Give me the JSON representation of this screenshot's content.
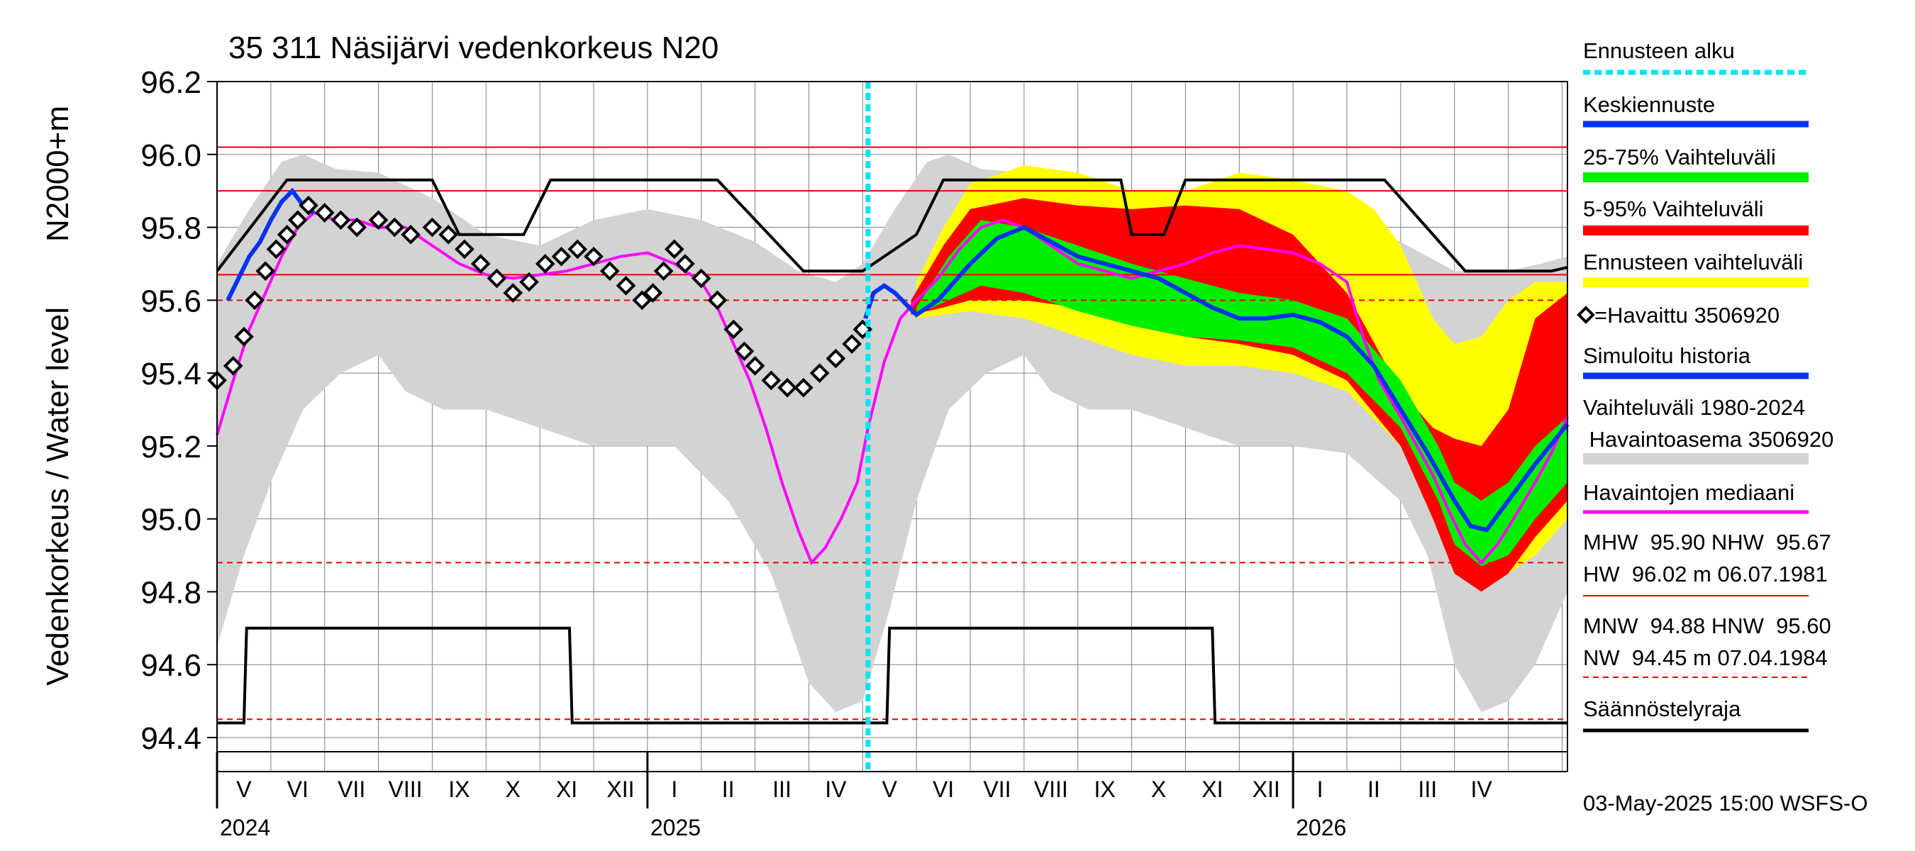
{
  "chart_data": {
    "type": "line",
    "title": "35 311 Näsijärvi vedenkorkeus N20",
    "ylabel_outer": "Vedenkorkeus / Water level",
    "ylabel_inner": "N2000+m",
    "ylim": [
      94.4,
      96.2
    ],
    "yticks": [
      "96.2",
      "96.0",
      "95.8",
      "95.6",
      "95.4",
      "95.2",
      "95.0",
      "94.8",
      "94.6",
      "94.4"
    ],
    "grid": true,
    "forecast_start_month": 12.1,
    "x_month_range": [
      0,
      25.1
    ],
    "months": [
      "V",
      "VI",
      "VII",
      "VIII",
      "IX",
      "X",
      "XI",
      "XII",
      "I",
      "II",
      "III",
      "IV",
      "V",
      "VI",
      "VII",
      "VIII",
      "IX",
      "X",
      "XI",
      "XII",
      "I",
      "II",
      "III",
      "IV"
    ],
    "years": [
      {
        "label": "2024",
        "month": 0
      },
      {
        "label": "2025",
        "month": 8
      },
      {
        "label": "2026",
        "month": 20
      }
    ],
    "reference_lines": [
      {
        "name": "HW",
        "value": 96.02,
        "style": "solid"
      },
      {
        "name": "MHW",
        "value": 95.9,
        "style": "solid"
      },
      {
        "name": "NHW",
        "value": 95.67,
        "style": "solid"
      },
      {
        "name": "HNW",
        "value": 95.6,
        "style": "dashed"
      },
      {
        "name": "MNW",
        "value": 94.88,
        "style": "dashed"
      },
      {
        "name": "NW",
        "value": 94.45,
        "style": "dashed"
      }
    ],
    "regulation_upper": [
      [
        0,
        95.68
      ],
      [
        1.3,
        95.93
      ],
      [
        4,
        95.93
      ],
      [
        4.5,
        95.78
      ],
      [
        5.7,
        95.78
      ],
      [
        6.2,
        95.93
      ],
      [
        9.3,
        95.93
      ],
      [
        10.9,
        95.68
      ],
      [
        12,
        95.68
      ],
      [
        13,
        95.78
      ],
      [
        13.5,
        95.93
      ],
      [
        16.8,
        95.93
      ],
      [
        17,
        95.78
      ],
      [
        17.6,
        95.78
      ],
      [
        18,
        95.93
      ],
      [
        21.7,
        95.93
      ],
      [
        23.2,
        95.68
      ],
      [
        24.8,
        95.68
      ],
      [
        25.1,
        95.69
      ]
    ],
    "regulation_lower": [
      [
        0,
        94.44
      ],
      [
        0.5,
        94.44
      ],
      [
        0.55,
        94.7
      ],
      [
        6.55,
        94.7
      ],
      [
        6.6,
        94.44
      ],
      [
        12.45,
        94.44
      ],
      [
        12.5,
        94.7
      ],
      [
        18.5,
        94.7
      ],
      [
        18.55,
        94.44
      ],
      [
        25.1,
        94.44
      ]
    ],
    "hist_range_upper": [
      [
        0,
        95.7
      ],
      [
        0.6,
        95.85
      ],
      [
        1.2,
        95.98
      ],
      [
        1.6,
        96.0
      ],
      [
        2.2,
        95.96
      ],
      [
        3,
        95.95
      ],
      [
        4,
        95.88
      ],
      [
        5,
        95.78
      ],
      [
        6,
        95.75
      ],
      [
        7,
        95.82
      ],
      [
        8,
        95.85
      ],
      [
        9,
        95.82
      ],
      [
        10,
        95.76
      ],
      [
        10.8,
        95.68
      ],
      [
        11.5,
        95.65
      ],
      [
        12,
        95.7
      ],
      [
        12.6,
        95.85
      ],
      [
        13.2,
        95.98
      ],
      [
        13.6,
        96.0
      ],
      [
        14.2,
        95.96
      ],
      [
        15,
        95.95
      ],
      [
        16,
        95.88
      ],
      [
        17,
        95.78
      ],
      [
        18,
        95.75
      ],
      [
        19,
        95.82
      ],
      [
        20,
        95.85
      ],
      [
        21,
        95.82
      ],
      [
        22,
        95.76
      ],
      [
        23,
        95.68
      ],
      [
        24,
        95.68
      ],
      [
        24.6,
        95.7
      ],
      [
        25.1,
        95.72
      ]
    ],
    "hist_range_lower": [
      [
        0,
        94.65
      ],
      [
        0.5,
        94.9
      ],
      [
        1,
        95.1
      ],
      [
        1.6,
        95.3
      ],
      [
        2.3,
        95.4
      ],
      [
        3,
        95.45
      ],
      [
        3.5,
        95.35
      ],
      [
        4.2,
        95.3
      ],
      [
        5,
        95.3
      ],
      [
        6,
        95.25
      ],
      [
        7,
        95.2
      ],
      [
        7.8,
        95.2
      ],
      [
        8.5,
        95.2
      ],
      [
        9.5,
        95.05
      ],
      [
        10.3,
        94.85
      ],
      [
        11,
        94.55
      ],
      [
        11.5,
        94.47
      ],
      [
        12,
        94.5
      ],
      [
        12.5,
        94.75
      ],
      [
        13,
        95.05
      ],
      [
        13.6,
        95.3
      ],
      [
        14.3,
        95.4
      ],
      [
        15,
        95.45
      ],
      [
        15.5,
        95.35
      ],
      [
        16.2,
        95.3
      ],
      [
        17,
        95.3
      ],
      [
        18,
        95.25
      ],
      [
        19,
        95.2
      ],
      [
        20,
        95.2
      ],
      [
        21,
        95.18
      ],
      [
        22,
        95.05
      ],
      [
        22.5,
        94.9
      ],
      [
        23,
        94.6
      ],
      [
        23.5,
        94.47
      ],
      [
        24,
        94.5
      ],
      [
        24.5,
        94.6
      ],
      [
        25.1,
        94.8
      ]
    ],
    "band_5_95_upper": [
      [
        12.9,
        95.6
      ],
      [
        13.5,
        95.75
      ],
      [
        14,
        95.85
      ],
      [
        15,
        95.88
      ],
      [
        16,
        95.86
      ],
      [
        17,
        95.85
      ],
      [
        18,
        95.86
      ],
      [
        19,
        95.85
      ],
      [
        20,
        95.78
      ],
      [
        21,
        95.62
      ],
      [
        22,
        95.35
      ],
      [
        22.6,
        95.25
      ],
      [
        23,
        95.22
      ],
      [
        23.5,
        95.2
      ],
      [
        24,
        95.3
      ],
      [
        24.5,
        95.55
      ],
      [
        25.1,
        95.62
      ]
    ],
    "band_5_95_lower": [
      [
        12.9,
        95.56
      ],
      [
        13.5,
        95.58
      ],
      [
        14,
        95.6
      ],
      [
        15,
        95.6
      ],
      [
        16,
        95.58
      ],
      [
        17,
        95.53
      ],
      [
        18,
        95.5
      ],
      [
        19,
        95.48
      ],
      [
        20,
        95.45
      ],
      [
        21,
        95.38
      ],
      [
        22,
        95.2
      ],
      [
        22.6,
        95.0
      ],
      [
        23,
        94.85
      ],
      [
        23.5,
        94.8
      ],
      [
        24,
        94.85
      ],
      [
        24.5,
        94.95
      ],
      [
        25.1,
        95.05
      ]
    ],
    "band_ensemble_upper": [
      [
        13,
        95.65
      ],
      [
        13.5,
        95.8
      ],
      [
        14,
        95.92
      ],
      [
        15,
        95.97
      ],
      [
        16,
        95.95
      ],
      [
        17,
        95.9
      ],
      [
        18,
        95.9
      ],
      [
        19,
        95.95
      ],
      [
        20,
        95.93
      ],
      [
        21,
        95.9
      ],
      [
        21.5,
        95.85
      ],
      [
        22,
        95.75
      ],
      [
        22.6,
        95.55
      ],
      [
        23,
        95.48
      ],
      [
        23.5,
        95.5
      ],
      [
        24,
        95.6
      ],
      [
        24.5,
        95.65
      ],
      [
        25.1,
        95.65
      ]
    ],
    "band_ensemble_lower": [
      [
        13,
        95.55
      ],
      [
        13.5,
        95.56
      ],
      [
        14,
        95.57
      ],
      [
        15,
        95.55
      ],
      [
        16,
        95.5
      ],
      [
        17,
        95.45
      ],
      [
        18,
        95.42
      ],
      [
        19,
        95.42
      ],
      [
        20,
        95.4
      ],
      [
        21,
        95.35
      ],
      [
        22,
        95.2
      ],
      [
        22.6,
        95.0
      ],
      [
        23,
        94.88
      ],
      [
        23.5,
        94.82
      ],
      [
        24,
        94.85
      ],
      [
        24.5,
        94.9
      ],
      [
        25.1,
        95.0
      ]
    ],
    "band_25_75_upper": [
      [
        13,
        95.58
      ],
      [
        13.6,
        95.72
      ],
      [
        14.2,
        95.82
      ],
      [
        15,
        95.8
      ],
      [
        16,
        95.75
      ],
      [
        17,
        95.7
      ],
      [
        18,
        95.66
      ],
      [
        19,
        95.62
      ],
      [
        20,
        95.6
      ],
      [
        21,
        95.55
      ],
      [
        22,
        95.38
      ],
      [
        22.7,
        95.2
      ],
      [
        23,
        95.1
      ],
      [
        23.5,
        95.05
      ],
      [
        24,
        95.1
      ],
      [
        24.5,
        95.2
      ],
      [
        25.1,
        95.28
      ]
    ],
    "band_25_75_lower": [
      [
        13,
        95.56
      ],
      [
        13.6,
        95.6
      ],
      [
        14.2,
        95.64
      ],
      [
        15,
        95.62
      ],
      [
        16,
        95.57
      ],
      [
        17,
        95.53
      ],
      [
        18,
        95.5
      ],
      [
        19,
        95.49
      ],
      [
        20,
        95.47
      ],
      [
        21,
        95.4
      ],
      [
        22,
        95.25
      ],
      [
        22.7,
        95.05
      ],
      [
        23,
        94.93
      ],
      [
        23.5,
        94.87
      ],
      [
        24,
        94.9
      ],
      [
        24.5,
        95.0
      ],
      [
        25.1,
        95.1
      ]
    ],
    "mean_forecast": [
      [
        12.05,
        95.55
      ],
      [
        12.2,
        95.62
      ],
      [
        12.4,
        95.64
      ],
      [
        12.6,
        95.62
      ],
      [
        13,
        95.56
      ],
      [
        13.4,
        95.6
      ],
      [
        14,
        95.7
      ],
      [
        14.5,
        95.77
      ],
      [
        15,
        95.8
      ],
      [
        15.5,
        95.76
      ],
      [
        16,
        95.72
      ],
      [
        17,
        95.68
      ],
      [
        17.5,
        95.66
      ],
      [
        18,
        95.62
      ],
      [
        18.5,
        95.58
      ],
      [
        19,
        95.55
      ],
      [
        19.5,
        95.55
      ],
      [
        20,
        95.56
      ],
      [
        20.5,
        95.54
      ],
      [
        21,
        95.5
      ],
      [
        21.5,
        95.42
      ],
      [
        22,
        95.3
      ],
      [
        22.5,
        95.18
      ],
      [
        23,
        95.05
      ],
      [
        23.3,
        94.98
      ],
      [
        23.6,
        94.97
      ],
      [
        24,
        95.05
      ],
      [
        24.5,
        95.15
      ],
      [
        25.1,
        95.26
      ]
    ],
    "simulated_history": [
      [
        0.2,
        95.6
      ],
      [
        0.4,
        95.66
      ],
      [
        0.6,
        95.72
      ],
      [
        0.8,
        95.76
      ],
      [
        1.0,
        95.82
      ],
      [
        1.2,
        95.87
      ],
      [
        1.4,
        95.9
      ],
      [
        1.6,
        95.86
      ],
      [
        1.8,
        95.84
      ]
    ],
    "observed": [
      [
        0,
        95.38
      ],
      [
        0.3,
        95.42
      ],
      [
        0.5,
        95.5
      ],
      [
        0.7,
        95.6
      ],
      [
        0.9,
        95.68
      ],
      [
        1.1,
        95.74
      ],
      [
        1.3,
        95.78
      ],
      [
        1.5,
        95.82
      ],
      [
        1.7,
        95.86
      ],
      [
        2,
        95.84
      ],
      [
        2.3,
        95.82
      ],
      [
        2.6,
        95.8
      ],
      [
        3,
        95.82
      ],
      [
        3.3,
        95.8
      ],
      [
        3.6,
        95.78
      ],
      [
        4,
        95.8
      ],
      [
        4.3,
        95.78
      ],
      [
        4.6,
        95.74
      ],
      [
        4.9,
        95.7
      ],
      [
        5.2,
        95.66
      ],
      [
        5.5,
        95.62
      ],
      [
        5.8,
        95.65
      ],
      [
        6.1,
        95.7
      ],
      [
        6.4,
        95.72
      ],
      [
        6.7,
        95.74
      ],
      [
        7,
        95.72
      ],
      [
        7.3,
        95.68
      ],
      [
        7.6,
        95.64
      ],
      [
        7.9,
        95.6
      ],
      [
        8.1,
        95.62
      ],
      [
        8.3,
        95.68
      ],
      [
        8.5,
        95.74
      ],
      [
        8.7,
        95.7
      ],
      [
        9,
        95.66
      ],
      [
        9.3,
        95.6
      ],
      [
        9.6,
        95.52
      ],
      [
        9.8,
        95.46
      ],
      [
        10,
        95.42
      ],
      [
        10.3,
        95.38
      ],
      [
        10.6,
        95.36
      ],
      [
        10.9,
        95.36
      ],
      [
        11.2,
        95.4
      ],
      [
        11.5,
        95.44
      ],
      [
        11.8,
        95.48
      ],
      [
        12,
        95.52
      ]
    ],
    "median": [
      [
        0,
        95.23
      ],
      [
        0.3,
        95.38
      ],
      [
        0.6,
        95.52
      ],
      [
        0.9,
        95.62
      ],
      [
        1.2,
        95.72
      ],
      [
        1.5,
        95.8
      ],
      [
        1.8,
        95.84
      ],
      [
        2.2,
        95.82
      ],
      [
        2.6,
        95.82
      ],
      [
        3,
        95.8
      ],
      [
        3.5,
        95.8
      ],
      [
        4,
        95.75
      ],
      [
        4.5,
        95.7
      ],
      [
        5,
        95.67
      ],
      [
        5.5,
        95.66
      ],
      [
        6,
        95.67
      ],
      [
        6.5,
        95.68
      ],
      [
        7,
        95.7
      ],
      [
        7.5,
        95.72
      ],
      [
        8,
        95.73
      ],
      [
        8.5,
        95.7
      ],
      [
        9,
        95.65
      ],
      [
        9.3,
        95.58
      ],
      [
        9.6,
        95.48
      ],
      [
        9.9,
        95.38
      ],
      [
        10.2,
        95.25
      ],
      [
        10.5,
        95.1
      ],
      [
        10.8,
        94.97
      ],
      [
        11.05,
        94.88
      ],
      [
        11.3,
        94.92
      ],
      [
        11.6,
        95.0
      ],
      [
        11.9,
        95.1
      ],
      [
        12.1,
        95.25
      ],
      [
        12.4,
        95.43
      ],
      [
        12.7,
        95.55
      ],
      [
        13,
        95.6
      ],
      [
        13.4,
        95.66
      ],
      [
        13.8,
        95.74
      ],
      [
        14.2,
        95.8
      ],
      [
        14.6,
        95.82
      ],
      [
        15,
        95.8
      ],
      [
        15.5,
        95.75
      ],
      [
        16,
        95.7
      ],
      [
        16.5,
        95.68
      ],
      [
        17,
        95.66
      ],
      [
        17.5,
        95.68
      ],
      [
        18,
        95.7
      ],
      [
        18.5,
        95.73
      ],
      [
        19,
        95.75
      ],
      [
        19.5,
        95.74
      ],
      [
        20,
        95.73
      ],
      [
        20.5,
        95.7
      ],
      [
        21,
        95.65
      ],
      [
        21.3,
        95.5
      ],
      [
        21.6,
        95.38
      ],
      [
        22,
        95.28
      ],
      [
        22.3,
        95.2
      ],
      [
        22.6,
        95.12
      ],
      [
        22.9,
        95.02
      ],
      [
        23.2,
        94.93
      ],
      [
        23.5,
        94.88
      ],
      [
        23.8,
        94.93
      ],
      [
        24.1,
        95.0
      ],
      [
        24.5,
        95.1
      ],
      [
        24.8,
        95.18
      ],
      [
        25.1,
        95.28
      ]
    ]
  },
  "legend": {
    "forecast_start": "Ennusteen alku",
    "mean_forecast": "Keskiennuste",
    "range_25_75": "25-75% Vaihteluväli",
    "range_5_95": "5-95% Vaihteluväli",
    "ensemble_range": "Ennusteen vaihteluväli",
    "observed": "=Havaittu 3506920",
    "simulated_history": "Simuloitu historia",
    "hist_range_line1": "Vaihteluväli 1980-2024",
    "hist_range_line2": " Havaintoasema 3506920",
    "median": "Havaintojen mediaani",
    "stats_high_line1": "MHW  95.90 NHW  95.67",
    "stats_high_line2": "HW  96.02 m 06.07.1981",
    "stats_low_line1": "MNW  94.88 HNW  95.60",
    "stats_low_line2": "NW  94.45 m 07.04.1984",
    "regulation_limit": "Säännöstelyraja"
  },
  "footer": "03-May-2025 15:00 WSFS-O",
  "colors": {
    "hist_range": "#d3d3d3",
    "ensemble": "#ffff00",
    "range_5_95": "#ff0000",
    "range_25_75": "#00ee00",
    "mean": "#0033ee",
    "median": "#ff00ff",
    "forecast_start": "#00e5ee",
    "ref_line": "#ee0000"
  }
}
